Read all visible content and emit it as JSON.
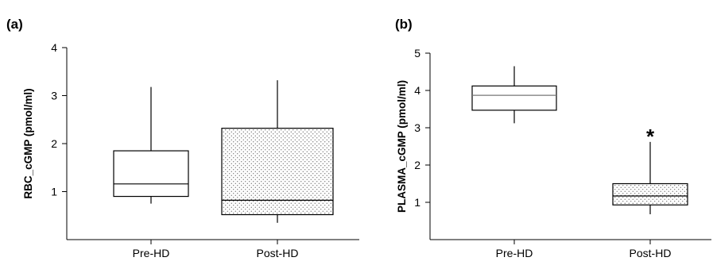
{
  "chart_data": [
    {
      "type": "box",
      "panel_label": "(a)",
      "ylabel": "RBC_cGMP (pmol/ml)",
      "ylim": [
        0,
        4
      ],
      "yticks": [
        "1",
        "2",
        "3",
        "4"
      ],
      "categories": [
        "Pre-HD",
        "Post-HD"
      ],
      "boxes": [
        {
          "category": "Pre-HD",
          "whisker_low": 0.75,
          "q1": 0.9,
          "median": 1.16,
          "q3": 1.85,
          "whisker_high": 3.18,
          "fill": "plain"
        },
        {
          "category": "Post-HD",
          "whisker_low": 0.35,
          "q1": 0.52,
          "median": 0.82,
          "q3": 2.32,
          "whisker_high": 3.32,
          "fill": "dotted"
        }
      ],
      "annotations": []
    },
    {
      "type": "box",
      "panel_label": "(b)",
      "ylabel": "PLASMA_cGMP (pmol/ml)",
      "ylim": [
        0,
        5
      ],
      "yticks": [
        "1",
        "2",
        "3",
        "4",
        "5"
      ],
      "categories": [
        "Pre-HD",
        "Post-HD"
      ],
      "boxes": [
        {
          "category": "Pre-HD",
          "whisker_low": 3.12,
          "q1": 3.47,
          "median": 3.87,
          "q3": 4.12,
          "whisker_high": 4.65,
          "fill": "plain"
        },
        {
          "category": "Post-HD",
          "whisker_low": 0.68,
          "q1": 0.93,
          "median": 1.17,
          "q3": 1.5,
          "whisker_high": 2.62,
          "fill": "dotted"
        }
      ],
      "annotations": [
        {
          "category": "Post-HD",
          "text": "*"
        }
      ]
    }
  ]
}
